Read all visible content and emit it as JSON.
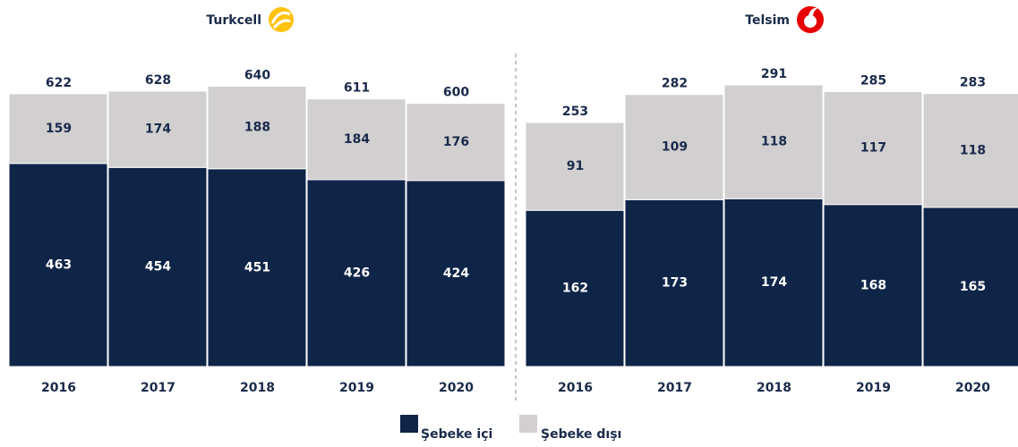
{
  "chart_data": [
    {
      "type": "bar",
      "stacked": true,
      "title": "Turkcell",
      "categories": [
        "2016",
        "2017",
        "2018",
        "2019",
        "2020"
      ],
      "series": [
        {
          "name": "Şebeke içi",
          "color": "#0f2548",
          "values": [
            463,
            454,
            451,
            426,
            424
          ]
        },
        {
          "name": "Şebeke dışı",
          "color": "#d1cfd0",
          "values": [
            159,
            174,
            188,
            184,
            176
          ]
        }
      ],
      "totals": [
        622,
        628,
        640,
        611,
        600
      ],
      "ylim": [
        0,
        640
      ]
    },
    {
      "type": "bar",
      "stacked": true,
      "title": "Telsim",
      "categories": [
        "2016",
        "2017",
        "2018",
        "2019",
        "2020"
      ],
      "series": [
        {
          "name": "Şebeke içi",
          "color": "#0f2548",
          "values": [
            162,
            173,
            174,
            168,
            165
          ]
        },
        {
          "name": "Şebeke dışı",
          "color": "#d1cfd0",
          "values": [
            91,
            109,
            118,
            117,
            118
          ]
        }
      ],
      "totals": [
        253,
        282,
        291,
        285,
        283
      ],
      "ylim": [
        0,
        291
      ]
    }
  ]
}
